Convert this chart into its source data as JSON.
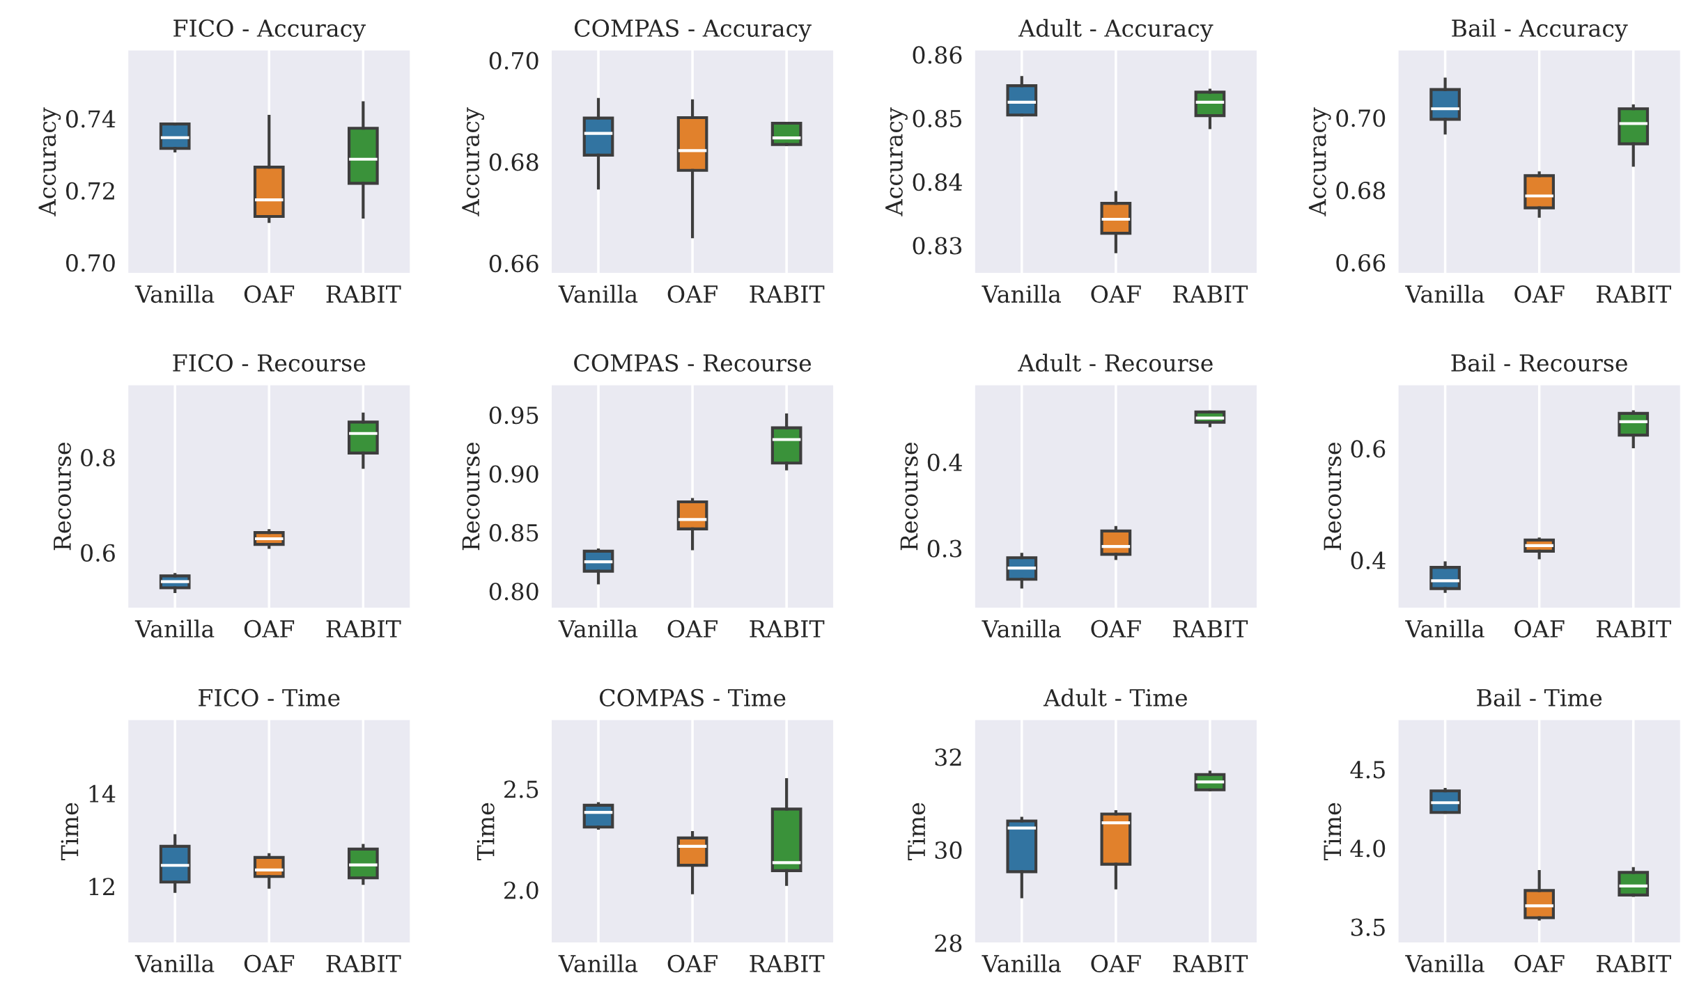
{
  "chart_data": [
    {
      "type": "box",
      "title": "FICO - Accuracy",
      "ylabel": "Accuracy",
      "categories": [
        "Vanilla",
        "OAF",
        "RABIT"
      ],
      "colors": [
        "#3274a1",
        "#e1812c",
        "#3a923a"
      ],
      "grid": "x",
      "ylim": [
        0.697,
        0.759
      ],
      "yticks": [
        {
          "value": 0.7,
          "label": "0.70"
        },
        {
          "value": 0.72,
          "label": "0.72"
        },
        {
          "value": 0.74,
          "label": "0.74"
        }
      ],
      "boxes": [
        {
          "low": 0.731,
          "q1": 0.7317,
          "median": 0.7347,
          "q3": 0.7385,
          "high": 0.7385
        },
        {
          "low": 0.7114,
          "q1": 0.7128,
          "median": 0.7174,
          "q3": 0.7265,
          "high": 0.7406
        },
        {
          "low": 0.7126,
          "q1": 0.722,
          "median": 0.7287,
          "q3": 0.7373,
          "high": 0.7444
        }
      ]
    },
    {
      "type": "box",
      "title": "COMPAS - Accuracy",
      "ylabel": "Accuracy",
      "categories": [
        "Vanilla",
        "OAF",
        "RABIT"
      ],
      "colors": [
        "#3274a1",
        "#e1812c",
        "#3a923a"
      ],
      "grid": "x",
      "ylim": [
        0.658,
        0.702
      ],
      "yticks": [
        {
          "value": 0.66,
          "label": "0.66"
        },
        {
          "value": 0.68,
          "label": "0.68"
        },
        {
          "value": 0.7,
          "label": "0.70"
        }
      ],
      "boxes": [
        {
          "low": 0.6748,
          "q1": 0.6813,
          "median": 0.6856,
          "q3": 0.6886,
          "high": 0.6923
        },
        {
          "low": 0.6652,
          "q1": 0.6783,
          "median": 0.6822,
          "q3": 0.6887,
          "high": 0.692
        },
        {
          "low": 0.6834,
          "q1": 0.6834,
          "median": 0.6847,
          "q3": 0.6876,
          "high": 0.6876
        }
      ]
    },
    {
      "type": "box",
      "title": "Adult - Accuracy",
      "ylabel": "Accuracy",
      "categories": [
        "Vanilla",
        "OAF",
        "RABIT"
      ],
      "colors": [
        "#3274a1",
        "#e1812c",
        "#3a923a"
      ],
      "grid": "x",
      "ylim": [
        0.8256,
        0.8607
      ],
      "yticks": [
        {
          "value": 0.83,
          "label": "0.83"
        },
        {
          "value": 0.84,
          "label": "0.84"
        },
        {
          "value": 0.85,
          "label": "0.85"
        },
        {
          "value": 0.86,
          "label": "0.86"
        }
      ],
      "boxes": [
        {
          "low": 0.8505,
          "q1": 0.8505,
          "median": 0.8525,
          "q3": 0.8551,
          "high": 0.8564
        },
        {
          "low": 0.829,
          "q1": 0.8319,
          "median": 0.8341,
          "q3": 0.8366,
          "high": 0.8383
        },
        {
          "low": 0.8485,
          "q1": 0.8504,
          "median": 0.8525,
          "q3": 0.8541,
          "high": 0.8544
        }
      ]
    },
    {
      "type": "box",
      "title": "Bail - Accuracy",
      "ylabel": "Accuracy",
      "categories": [
        "Vanilla",
        "OAF",
        "RABIT"
      ],
      "colors": [
        "#3274a1",
        "#e1812c",
        "#3a923a"
      ],
      "grid": "x",
      "ylim": [
        0.657,
        0.7187
      ],
      "yticks": [
        {
          "value": 0.66,
          "label": "0.66"
        },
        {
          "value": 0.68,
          "label": "0.68"
        },
        {
          "value": 0.7,
          "label": "0.70"
        }
      ],
      "boxes": [
        {
          "low": 0.6958,
          "q1": 0.6996,
          "median": 0.7025,
          "q3": 0.7078,
          "high": 0.7107
        },
        {
          "low": 0.6728,
          "q1": 0.6751,
          "median": 0.6784,
          "q3": 0.684,
          "high": 0.6848
        },
        {
          "low": 0.6869,
          "q1": 0.6928,
          "median": 0.6984,
          "q3": 0.7025,
          "high": 0.7033
        }
      ]
    },
    {
      "type": "box",
      "title": "FICO - Recourse",
      "ylabel": "Recourse",
      "categories": [
        "Vanilla",
        "OAF",
        "RABIT"
      ],
      "colors": [
        "#3274a1",
        "#e1812c",
        "#3a923a"
      ],
      "grid": "x",
      "ylim": [
        0.4834,
        0.952
      ],
      "yticks": [
        {
          "value": 0.6,
          "label": "0.6"
        },
        {
          "value": 0.8,
          "label": "0.8"
        }
      ],
      "boxes": [
        {
          "low": 0.518,
          "q1": 0.526,
          "median": 0.539,
          "q3": 0.551,
          "high": 0.554
        },
        {
          "low": 0.611,
          "q1": 0.617,
          "median": 0.629,
          "q3": 0.642,
          "high": 0.646
        },
        {
          "low": 0.779,
          "q1": 0.809,
          "median": 0.85,
          "q3": 0.874,
          "high": 0.891
        }
      ]
    },
    {
      "type": "box",
      "title": "COMPAS - Recourse",
      "ylabel": "Recourse",
      "categories": [
        "Vanilla",
        "OAF",
        "RABIT"
      ],
      "colors": [
        "#3274a1",
        "#e1812c",
        "#3a923a"
      ],
      "grid": "x",
      "ylim": [
        0.7856,
        0.9755
      ],
      "yticks": [
        {
          "value": 0.8,
          "label": "0.80"
        },
        {
          "value": 0.85,
          "label": "0.85"
        },
        {
          "value": 0.9,
          "label": "0.90"
        },
        {
          "value": 0.95,
          "label": "0.95"
        }
      ],
      "boxes": [
        {
          "low": 0.807,
          "q1": 0.817,
          "median": 0.825,
          "q3": 0.834,
          "high": 0.835
        },
        {
          "low": 0.836,
          "q1": 0.853,
          "median": 0.861,
          "q3": 0.876,
          "high": 0.878
        },
        {
          "low": 0.904,
          "q1": 0.909,
          "median": 0.929,
          "q3": 0.939,
          "high": 0.95
        }
      ]
    },
    {
      "type": "box",
      "title": "Adult - Recourse",
      "ylabel": "Recourse",
      "categories": [
        "Vanilla",
        "OAF",
        "RABIT"
      ],
      "colors": [
        "#3274a1",
        "#e1812c",
        "#3a923a"
      ],
      "grid": "x",
      "ylim": [
        0.2306,
        0.4894
      ],
      "yticks": [
        {
          "value": 0.3,
          "label": "0.3"
        },
        {
          "value": 0.4,
          "label": "0.4"
        }
      ],
      "boxes": [
        {
          "low": 0.255,
          "q1": 0.264,
          "median": 0.277,
          "q3": 0.289,
          "high": 0.293
        },
        {
          "low": 0.288,
          "q1": 0.293,
          "median": 0.302,
          "q3": 0.32,
          "high": 0.324
        },
        {
          "low": 0.442,
          "q1": 0.446,
          "median": 0.451,
          "q3": 0.458,
          "high": 0.458
        }
      ]
    },
    {
      "type": "box",
      "title": "Bail - Recourse",
      "ylabel": "Recourse",
      "categories": [
        "Vanilla",
        "OAF",
        "RABIT"
      ],
      "colors": [
        "#3274a1",
        "#e1812c",
        "#3a923a"
      ],
      "grid": "x",
      "ylim": [
        0.314,
        0.714
      ],
      "yticks": [
        {
          "value": 0.4,
          "label": "0.4"
        },
        {
          "value": 0.6,
          "label": "0.6"
        }
      ],
      "boxes": [
        {
          "low": 0.344,
          "q1": 0.349,
          "median": 0.363,
          "q3": 0.387,
          "high": 0.395
        },
        {
          "low": 0.404,
          "q1": 0.416,
          "median": 0.426,
          "q3": 0.436,
          "high": 0.438
        },
        {
          "low": 0.603,
          "q1": 0.624,
          "median": 0.648,
          "q3": 0.663,
          "high": 0.666
        }
      ]
    },
    {
      "type": "box",
      "title": "FICO - Time",
      "ylabel": "Time",
      "categories": [
        "Vanilla",
        "OAF",
        "RABIT"
      ],
      "colors": [
        "#3274a1",
        "#e1812c",
        "#3a923a"
      ],
      "grid": "x",
      "ylim": [
        10.78,
        15.59
      ],
      "yticks": [
        12,
        14
      ],
      "boxes": [
        {
          "low": 11.89,
          "q1": 12.09,
          "median": 12.45,
          "q3": 12.86,
          "high": 13.09
        },
        {
          "low": 11.98,
          "q1": 12.21,
          "median": 12.35,
          "q3": 12.62,
          "high": 12.68
        },
        {
          "low": 12.06,
          "q1": 12.18,
          "median": 12.46,
          "q3": 12.8,
          "high": 12.88
        }
      ]
    },
    {
      "type": "box",
      "title": "COMPAS - Time",
      "ylabel": "Time",
      "categories": [
        "Vanilla",
        "OAF",
        "RABIT"
      ],
      "colors": [
        "#3274a1",
        "#e1812c",
        "#3a923a"
      ],
      "grid": "x",
      "ylim": [
        1.738,
        2.843
      ],
      "yticks": [
        {
          "value": 2.0,
          "label": "2.0"
        },
        {
          "value": 2.5,
          "label": "2.5"
        }
      ],
      "boxes": [
        {
          "low": 2.305,
          "q1": 2.311,
          "median": 2.384,
          "q3": 2.419,
          "high": 2.427
        },
        {
          "low": 1.986,
          "q1": 2.122,
          "median": 2.216,
          "q3": 2.257,
          "high": 2.284
        },
        {
          "low": 2.027,
          "q1": 2.095,
          "median": 2.135,
          "q3": 2.4,
          "high": 2.546
        }
      ]
    },
    {
      "type": "box",
      "title": "Adult - Time",
      "ylabel": "Time",
      "categories": [
        "Vanilla",
        "OAF",
        "RABIT"
      ],
      "colors": [
        "#3274a1",
        "#e1812c",
        "#3a923a"
      ],
      "grid": "x",
      "ylim": [
        28,
        32.8
      ],
      "yticks": [
        28,
        30,
        32
      ],
      "boxes": [
        {
          "low": 28.99,
          "q1": 29.53,
          "median": 30.47,
          "q3": 30.62,
          "high": 30.68
        },
        {
          "low": 29.18,
          "q1": 29.69,
          "median": 30.58,
          "q3": 30.77,
          "high": 30.82
        },
        {
          "low": 31.29,
          "q1": 31.29,
          "median": 31.46,
          "q3": 31.62,
          "high": 31.67
        }
      ]
    },
    {
      "type": "box",
      "title": "Bail - Time",
      "ylabel": "Time",
      "categories": [
        "Vanilla",
        "OAF",
        "RABIT"
      ],
      "colors": [
        "#3274a1",
        "#e1812c",
        "#3a923a"
      ],
      "grid": "x",
      "ylim": [
        3.399,
        4.815
      ],
      "yticks": [
        {
          "value": 3.5,
          "label": "3.5"
        },
        {
          "value": 4.0,
          "label": "4.0"
        },
        {
          "value": 4.5,
          "label": "4.5"
        }
      ],
      "boxes": [
        {
          "low": 4.226,
          "q1": 4.226,
          "median": 4.288,
          "q3": 4.363,
          "high": 4.373
        },
        {
          "low": 3.55,
          "q1": 3.558,
          "median": 3.634,
          "q3": 3.731,
          "high": 3.851
        },
        {
          "low": 3.7,
          "q1": 3.702,
          "median": 3.76,
          "q3": 3.846,
          "high": 3.87
        }
      ]
    }
  ]
}
